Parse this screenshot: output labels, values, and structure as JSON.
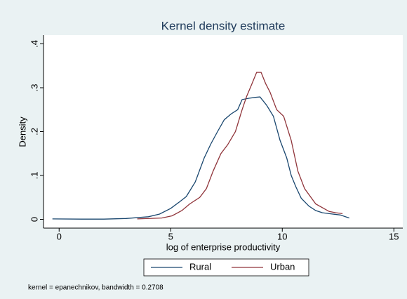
{
  "chart_data": {
    "type": "line",
    "title": "Kernel density estimate",
    "xlabel": "log of enterprise productivity",
    "ylabel": "Density",
    "note": "kernel = epanechnikov, bandwidth = 0.2708",
    "xlim": [
      -0.7,
      15.4
    ],
    "ylim": [
      -0.02,
      0.42
    ],
    "xticks": [
      0,
      5,
      10,
      15
    ],
    "yticks": [
      0,
      {
        "value": 0.1,
        "label": ".1"
      },
      {
        "value": 0.2,
        "label": ".2"
      },
      {
        "value": 0.3,
        "label": ".3"
      },
      {
        "value": 0.4,
        "label": ".4"
      }
    ],
    "grid": false,
    "legend": "bottom",
    "series": [
      {
        "name": "Rural",
        "color": "#1a476f",
        "x": [
          -0.3,
          1,
          2,
          3,
          4,
          4.5,
          5,
          5.4,
          5.7,
          6.1,
          6.5,
          6.8,
          7.1,
          7.4,
          7.7,
          8,
          8.2,
          8.5,
          8.8,
          9,
          9.3,
          9.6,
          9.9,
          10.2,
          10.4,
          10.6,
          10.85,
          11.2,
          11.5,
          11.8,
          12.1,
          12.6,
          13
        ],
        "values": [
          0.001,
          0.0005,
          0.0005,
          0.002,
          0.006,
          0.012,
          0.025,
          0.04,
          0.052,
          0.085,
          0.14,
          0.172,
          0.2,
          0.227,
          0.24,
          0.25,
          0.273,
          0.276,
          0.278,
          0.279,
          0.26,
          0.235,
          0.18,
          0.14,
          0.1,
          0.075,
          0.048,
          0.03,
          0.02,
          0.015,
          0.013,
          0.01,
          0.003
        ]
      },
      {
        "name": "Urban",
        "color": "#90353b",
        "x": [
          3.5,
          4.6,
          5.06,
          5.5,
          5.85,
          6.3,
          6.6,
          6.9,
          7.25,
          7.55,
          7.9,
          8.2,
          8.4,
          8.65,
          8.85,
          9.05,
          9.25,
          9.45,
          9.75,
          10.06,
          10.4,
          10.7,
          11,
          11.5,
          12.1,
          12.4,
          12.7
        ],
        "values": [
          0.001,
          0.003,
          0.008,
          0.02,
          0.035,
          0.05,
          0.07,
          0.11,
          0.15,
          0.17,
          0.2,
          0.25,
          0.28,
          0.31,
          0.335,
          0.335,
          0.31,
          0.29,
          0.25,
          0.235,
          0.18,
          0.11,
          0.07,
          0.035,
          0.018,
          0.015,
          0.013
        ]
      }
    ]
  }
}
